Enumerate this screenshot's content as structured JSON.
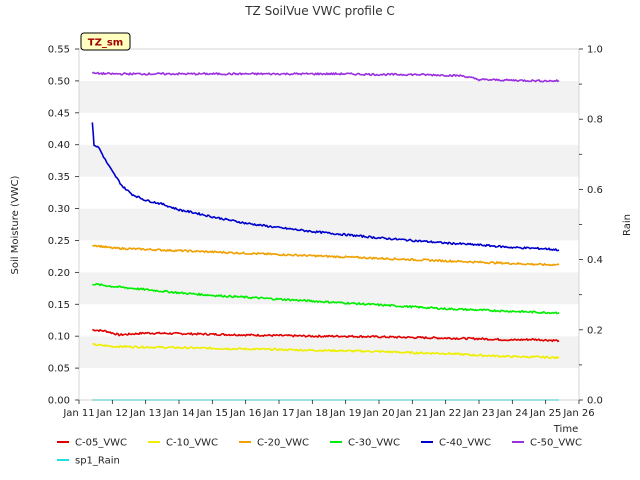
{
  "chart_data": {
    "type": "line",
    "title": "TZ SoilVue VWC profile C",
    "badge": "TZ_sm",
    "xlabel": "Time",
    "ylabel": "Soil Moisture (VWC)",
    "y2label": "Rain",
    "x_categories": [
      "Jan 11",
      "Jan 12",
      "Jan 13",
      "Jan 14",
      "Jan 15",
      "Jan 16",
      "Jan 17",
      "Jan 18",
      "Jan 19",
      "Jan 20",
      "Jan 21",
      "Jan 22",
      "Jan 23",
      "Jan 24",
      "Jan 25",
      "Jan 26"
    ],
    "xlim": [
      0,
      15
    ],
    "ylim": [
      0.0,
      0.55
    ],
    "y_ticks": [
      "0.00",
      "0.05",
      "0.10",
      "0.15",
      "0.20",
      "0.25",
      "0.30",
      "0.35",
      "0.40",
      "0.45",
      "0.50",
      "0.55"
    ],
    "y2lim": [
      0.0,
      1.0
    ],
    "y2_ticks": [
      "0.0",
      "0.2",
      "0.4",
      "0.6",
      "0.8",
      "1.0"
    ],
    "grid": "horizontal bands",
    "legend_position": "bottom",
    "series": [
      {
        "name": "C-05_VWC",
        "color": "#e00000",
        "axis": "left",
        "x": [
          0.4,
          0.8,
          1.2,
          2,
          3,
          4,
          5,
          6,
          7,
          8,
          9,
          10,
          11,
          12,
          13,
          13.6,
          14.4
        ],
        "y": [
          0.11,
          0.108,
          0.102,
          0.105,
          0.104,
          0.103,
          0.102,
          0.101,
          0.1,
          0.1,
          0.099,
          0.098,
          0.097,
          0.096,
          0.094,
          0.095,
          0.093
        ]
      },
      {
        "name": "C-10_VWC",
        "color": "#eeee00",
        "axis": "left",
        "x": [
          0.4,
          1,
          2,
          3,
          4,
          5,
          6,
          7,
          8,
          9,
          10,
          11,
          12,
          13,
          14,
          14.4
        ],
        "y": [
          0.087,
          0.084,
          0.083,
          0.082,
          0.081,
          0.08,
          0.079,
          0.078,
          0.077,
          0.076,
          0.074,
          0.073,
          0.07,
          0.068,
          0.067,
          0.066
        ]
      },
      {
        "name": "C-20_VWC",
        "color": "#f0a000",
        "axis": "left",
        "x": [
          0.4,
          1,
          2,
          3,
          4,
          5,
          6,
          7,
          8,
          9,
          10,
          11,
          12,
          13,
          14,
          14.4
        ],
        "y": [
          0.243,
          0.238,
          0.236,
          0.234,
          0.232,
          0.23,
          0.228,
          0.226,
          0.224,
          0.222,
          0.22,
          0.218,
          0.216,
          0.214,
          0.212,
          0.212
        ]
      },
      {
        "name": "C-30_VWC",
        "color": "#00ee00",
        "axis": "left",
        "x": [
          0.4,
          1,
          2,
          3,
          4,
          5,
          6,
          7,
          8,
          9,
          10,
          11,
          12,
          13,
          14,
          14.4
        ],
        "y": [
          0.182,
          0.178,
          0.173,
          0.168,
          0.164,
          0.161,
          0.158,
          0.155,
          0.152,
          0.149,
          0.146,
          0.143,
          0.141,
          0.139,
          0.137,
          0.137
        ]
      },
      {
        "name": "C-40_VWC",
        "color": "#0000cc",
        "axis": "left",
        "x": [
          0.4,
          0.45,
          0.6,
          0.8,
          1.0,
          1.3,
          1.6,
          2,
          2.5,
          3,
          3.5,
          4,
          5,
          6,
          7,
          8,
          9,
          10,
          11,
          12,
          13,
          14,
          14.4
        ],
        "y": [
          0.435,
          0.4,
          0.395,
          0.375,
          0.358,
          0.335,
          0.322,
          0.313,
          0.307,
          0.298,
          0.293,
          0.287,
          0.277,
          0.27,
          0.264,
          0.259,
          0.254,
          0.25,
          0.246,
          0.243,
          0.239,
          0.237,
          0.235
        ]
      },
      {
        "name": "C-50_VWC",
        "color": "#9a30e0",
        "axis": "left",
        "x": [
          0.4,
          1,
          2,
          3,
          4,
          5,
          6,
          7,
          8,
          9,
          10,
          11,
          11.5,
          12,
          13,
          14,
          14.4
        ],
        "y": [
          0.512,
          0.511,
          0.511,
          0.511,
          0.511,
          0.511,
          0.511,
          0.511,
          0.511,
          0.51,
          0.51,
          0.509,
          0.508,
          0.502,
          0.501,
          0.5,
          0.5
        ]
      },
      {
        "name": "sp1_Rain",
        "color": "#20e0e0",
        "axis": "right",
        "x": [
          0.4,
          14.4
        ],
        "y": [
          0.0,
          0.0
        ]
      }
    ]
  }
}
